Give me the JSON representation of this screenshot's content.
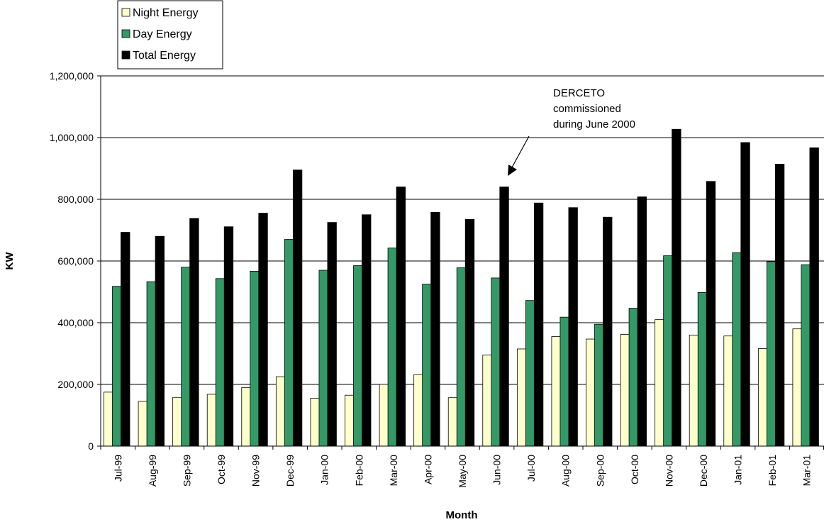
{
  "chart_data": {
    "type": "bar",
    "title": "",
    "xlabel": "Month",
    "ylabel": "KW",
    "ylim": [
      0,
      1200000
    ],
    "yticks": [
      "0",
      "200,000",
      "400,000",
      "600,000",
      "800,000",
      "1,000,000",
      "1,200,000"
    ],
    "grid": true,
    "legend_position": "top-left",
    "categories": [
      "Jul-99",
      "Aug-99",
      "Sep-99",
      "Oct-99",
      "Nov-99",
      "Dec-99",
      "Jan-00",
      "Feb-00",
      "Mar-00",
      "Apr-00",
      "May-00",
      "Jun-00",
      "Jul-00",
      "Aug-00",
      "Sep-00",
      "Oct-00",
      "Nov-00",
      "Dec-00",
      "Jan-01",
      "Feb-01",
      "Mar-01"
    ],
    "series": [
      {
        "name": "Night Energy",
        "color": "#ffffcc",
        "values": [
          175000,
          145000,
          158000,
          168000,
          190000,
          225000,
          155000,
          165000,
          200000,
          232000,
          157000,
          295000,
          315000,
          355000,
          347000,
          362000,
          410000,
          360000,
          357000,
          316000,
          380000
        ]
      },
      {
        "name": "Day Energy",
        "color": "#339966",
        "values": [
          518000,
          533000,
          580000,
          543000,
          567000,
          670000,
          570000,
          585000,
          642000,
          525000,
          578000,
          545000,
          472000,
          418000,
          395000,
          447000,
          617000,
          498000,
          627000,
          598000,
          588000
        ]
      },
      {
        "name": "Total Energy",
        "color": "#000000",
        "values": [
          693000,
          680000,
          738000,
          711000,
          755000,
          895000,
          725000,
          750000,
          840000,
          758000,
          735000,
          840000,
          788000,
          773000,
          742000,
          808000,
          1027000,
          858000,
          984000,
          914000,
          967000
        ]
      }
    ],
    "annotation": {
      "lines": [
        "DERCETO",
        "commissioned",
        "during June 2000"
      ],
      "points_to": "Jun-00"
    }
  }
}
